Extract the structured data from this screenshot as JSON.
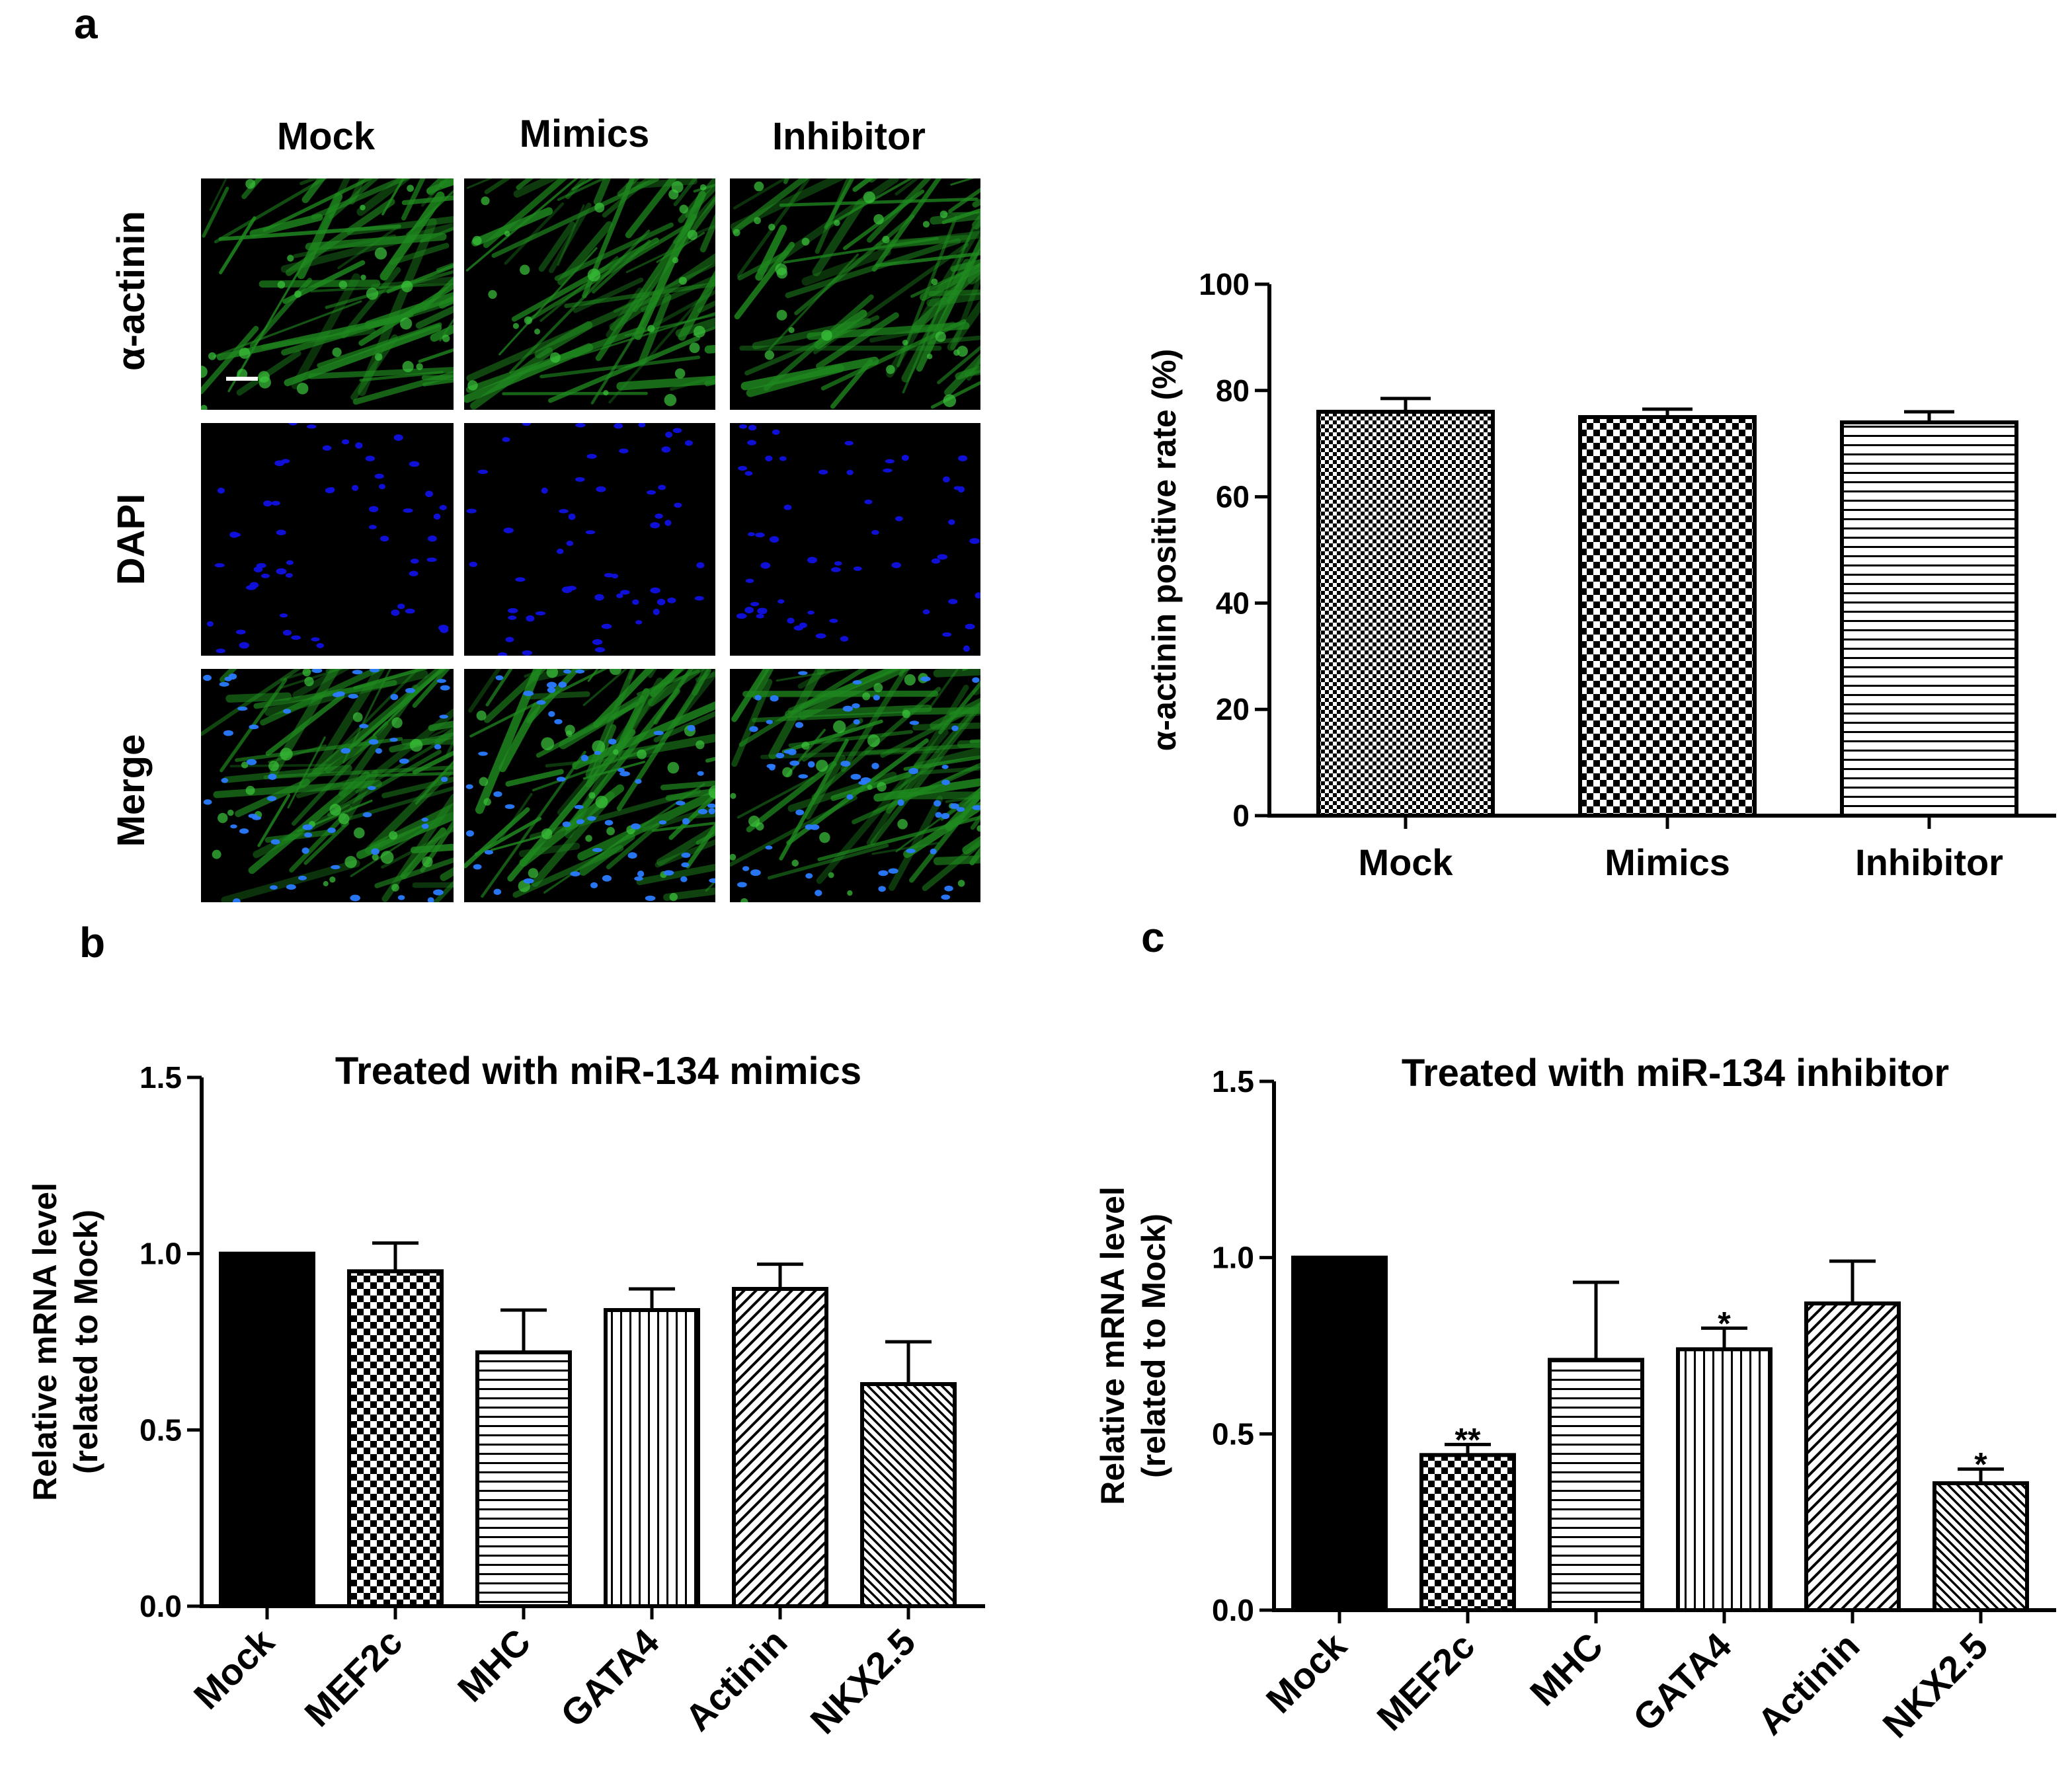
{
  "panel_letters": {
    "a": "a",
    "b": "b",
    "c": "c"
  },
  "micrographs": {
    "columns": [
      "Mock",
      "Mimics",
      "Inhibitor"
    ],
    "rows": [
      "α-actinin",
      "DAPI",
      "Merge"
    ],
    "colors": {
      "actinin": "#1f8a1f",
      "dapi": "#1010e0",
      "background": "#000000"
    }
  },
  "chart_data": [
    {
      "id": "a-right",
      "type": "bar",
      "title": "",
      "categories": [
        "Mock",
        "Mimics",
        "Inhibitor"
      ],
      "values": [
        76,
        75,
        74
      ],
      "errors": [
        2.5,
        1.5,
        2.0
      ],
      "patterns": [
        "fine-check",
        "check",
        "hstripe"
      ],
      "ylabel": "α-actinin positive rate (%)",
      "xlabel": "",
      "ylim": [
        0,
        100
      ],
      "yticks": [
        "0",
        "20",
        "40",
        "60",
        "80",
        "100"
      ],
      "annotations": [
        "",
        "",
        ""
      ]
    },
    {
      "id": "b",
      "type": "bar",
      "title": "Treated with miR-134 mimics",
      "categories": [
        "Mock",
        "MEF2c",
        "MHC",
        "GATA4",
        "Actinin",
        "NKX2.5"
      ],
      "values": [
        1.0,
        0.95,
        0.72,
        0.84,
        0.9,
        0.63
      ],
      "errors": [
        0,
        0.08,
        0.12,
        0.06,
        0.07,
        0.12
      ],
      "patterns": [
        "solid",
        "check",
        "hstripe",
        "vstripe",
        "diag",
        "diag-dense"
      ],
      "ylabel": "Relative mRNA level (related to Mock)",
      "ylabel_lines": [
        "Relative mRNA level",
        "(related to Mock)"
      ],
      "xlabel": "",
      "ylim": [
        0,
        1.5
      ],
      "yticks": [
        "0.0",
        "0.5",
        "1.0",
        "1.5"
      ],
      "annotations": [
        "",
        "",
        "",
        "",
        "",
        ""
      ]
    },
    {
      "id": "c",
      "type": "bar",
      "title": "Treated with miR-134 inhibitor",
      "categories": [
        "Mock",
        "MEF2c",
        "MHC",
        "GATA4",
        "Actinin",
        "NKX2.5"
      ],
      "values": [
        1.0,
        0.44,
        0.71,
        0.74,
        0.87,
        0.36
      ],
      "errors": [
        0,
        0.03,
        0.22,
        0.06,
        0.12,
        0.04
      ],
      "patterns": [
        "solid",
        "check",
        "hstripe",
        "vstripe",
        "diag",
        "diag-dense"
      ],
      "ylabel": "Relative mRNA level (related to Mock)",
      "ylabel_lines": [
        "Relative mRNA level",
        "(related to Mock)"
      ],
      "xlabel": "",
      "ylim": [
        0,
        1.5
      ],
      "yticks": [
        "0.0",
        "0.5",
        "1.0",
        "1.5"
      ],
      "annotations": [
        "",
        "**",
        "",
        "*",
        "",
        "*"
      ]
    }
  ]
}
